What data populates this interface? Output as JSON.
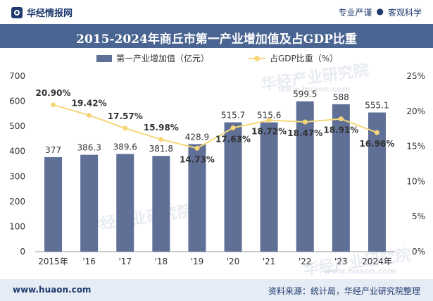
{
  "header": {
    "brand": "华经情报网",
    "slogan_left": "专业严谨",
    "slogan_dot": "●",
    "slogan_right": "客观科学"
  },
  "watermark": {
    "text": "华经产业研究院",
    "url": "www.huaon.com"
  },
  "footer": {
    "url": "www.huaon.com",
    "source": "资料来源：统计局，华经产业研究院整理"
  },
  "chart_data": {
    "type": "bar",
    "title": "2015-2024年商丘市第一产业增加值及占GDP比重",
    "categories": [
      "2015年",
      "'16",
      "'17",
      "'18",
      "'19",
      "'20",
      "'21",
      "'22",
      "'23",
      "2024年"
    ],
    "series": [
      {
        "name": "第一产业增加值（亿元）",
        "type": "bar",
        "axis": "left",
        "color": "#5f6f96",
        "values": [
          377,
          386.3,
          389.6,
          381.8,
          428.9,
          515.7,
          515.6,
          599.5,
          588,
          555.1
        ],
        "labels": [
          "377",
          "386.3",
          "389.6",
          "381.8",
          "428.9",
          "515.7",
          "515.6",
          "599.5",
          "588",
          "555.1"
        ]
      },
      {
        "name": "占GDP比重（%）",
        "type": "line",
        "axis": "right",
        "color": "#f5d77a",
        "values": [
          20.9,
          19.42,
          17.57,
          15.98,
          14.73,
          17.63,
          18.72,
          18.47,
          18.91,
          16.96
        ],
        "labels": [
          "20.90%",
          "19.42%",
          "17.57%",
          "15.98%",
          "14.73%",
          "17.63%",
          "18.72%",
          "18.47%",
          "18.91%",
          "16.96%"
        ]
      }
    ],
    "y_left": {
      "min": 0,
      "max": 700,
      "ticks": [
        "0",
        "100",
        "200",
        "300",
        "400",
        "500",
        "600",
        "700"
      ]
    },
    "y_right": {
      "min": 0,
      "max": 25,
      "ticks": [
        "0%",
        "5%",
        "10%",
        "15%",
        "20%",
        "25%"
      ]
    },
    "grid": false,
    "legend_position": "top"
  }
}
